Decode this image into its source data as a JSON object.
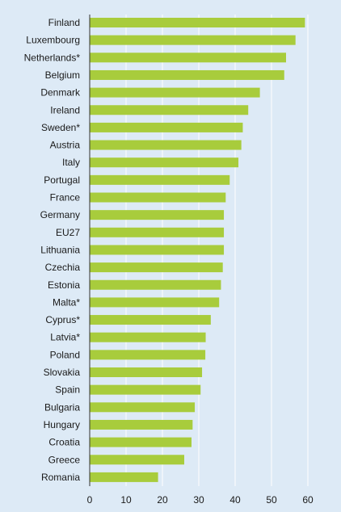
{
  "chart_data": {
    "type": "bar",
    "orientation": "horizontal",
    "categories": [
      "Finland",
      "Luxembourg",
      "Netherlands*",
      "Belgium",
      "Denmark",
      "Ireland",
      "Sweden*",
      "Austria",
      "Italy",
      "Portugal",
      "France",
      "Germany",
      "EU27",
      "Lithuania",
      "Czechia",
      "Estonia",
      "Malta*",
      "Cyprus*",
      "Latvia*",
      "Poland",
      "Slovakia",
      "Spain",
      "Bulgaria",
      "Hungary",
      "Croatia",
      "Greece",
      "Romania"
    ],
    "values": [
      59.2,
      56.6,
      54.0,
      53.5,
      46.8,
      43.6,
      42.1,
      41.7,
      40.9,
      38.5,
      37.4,
      36.9,
      36.9,
      36.9,
      36.6,
      36.1,
      35.6,
      33.3,
      31.9,
      31.8,
      30.9,
      30.5,
      28.9,
      28.3,
      28.0,
      26.0,
      18.8
    ],
    "xticks": [
      0,
      10,
      20,
      30,
      40,
      50,
      60
    ],
    "xlim": [
      0,
      63
    ],
    "title": "",
    "xlabel": "",
    "ylabel": "",
    "grid": true,
    "bar_color": "#a8cc3c",
    "grid_color": "#ffffff",
    "axis_color": "#333333"
  }
}
